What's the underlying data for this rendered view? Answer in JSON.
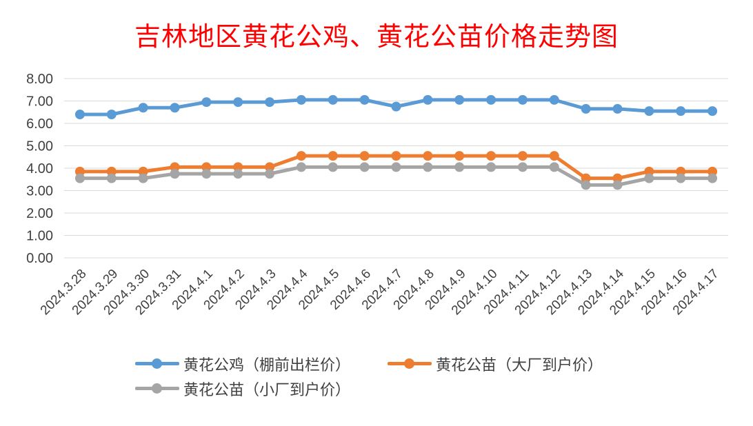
{
  "chart_data": {
    "type": "line",
    "title": "吉林地区黄花公鸡、黄花公苗价格走势图",
    "xlabel": "",
    "ylabel": "",
    "ylim": [
      0,
      8
    ],
    "yticks": [
      "0.00",
      "1.00",
      "2.00",
      "3.00",
      "4.00",
      "5.00",
      "6.00",
      "7.00",
      "8.00"
    ],
    "grid": true,
    "legend_position": "bottom",
    "categories": [
      "2024.3.28",
      "2024.3.29",
      "2024.3.30",
      "2024.3.31",
      "2024.4.1",
      "2024.4.2",
      "2024.4.3",
      "2024.4.4",
      "2024.4.5",
      "2024.4.6",
      "2024.4.7",
      "2024.4.8",
      "2024.4.9",
      "2024.4.10",
      "2024.4.11",
      "2024.4.12",
      "2024.4.13",
      "2024.4.14",
      "2024.4.15",
      "2024.4.16",
      "2024.4.17"
    ],
    "series": [
      {
        "name": "黄花公鸡（棚前出栏价）",
        "color": "#5b9bd5",
        "values": [
          6.4,
          6.4,
          6.7,
          6.7,
          6.95,
          6.95,
          6.95,
          7.05,
          7.05,
          7.05,
          6.75,
          7.05,
          7.05,
          7.05,
          7.05,
          7.05,
          6.65,
          6.65,
          6.55,
          6.55,
          6.55
        ]
      },
      {
        "name": "黄花公苗（大厂到户价）",
        "color": "#ed7d31",
        "values": [
          3.85,
          3.85,
          3.85,
          4.05,
          4.05,
          4.05,
          4.05,
          4.55,
          4.55,
          4.55,
          4.55,
          4.55,
          4.55,
          4.55,
          4.55,
          4.55,
          3.55,
          3.55,
          3.85,
          3.85,
          3.85
        ]
      },
      {
        "name": "黄花公苗（小厂到户价）",
        "color": "#a5a5a5",
        "values": [
          3.55,
          3.55,
          3.55,
          3.75,
          3.75,
          3.75,
          3.75,
          4.05,
          4.05,
          4.05,
          4.05,
          4.05,
          4.05,
          4.05,
          4.05,
          4.05,
          3.25,
          3.25,
          3.55,
          3.55,
          3.55
        ]
      }
    ]
  }
}
